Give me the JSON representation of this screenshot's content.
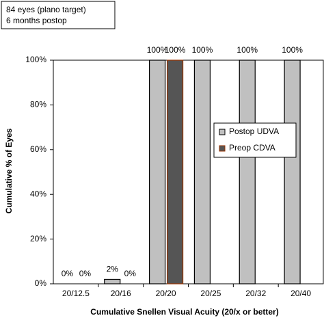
{
  "chart_data": {
    "type": "bar",
    "annotation": [
      "84 eyes (plano target)",
      "6 months postop"
    ],
    "x_label": "Cumulative Snellen Visual Acuity (20/x or better)",
    "y_label": "Cumulative % of Eyes",
    "categories": [
      "20/12.5",
      "20/16",
      "20/20",
      "20/25",
      "20/32",
      "20/40"
    ],
    "series": [
      {
        "name": "Postop UDVA",
        "color": "#c0c0c0",
        "edge_color": "#000000",
        "values": [
          0,
          2,
          100,
          100,
          100,
          100
        ],
        "value_labels": [
          "0%",
          "2%",
          "100%",
          "100%",
          "100%",
          "100%"
        ]
      },
      {
        "name": "Preop CDVA",
        "color": "#555555",
        "edge_color": "#993300",
        "values": [
          0,
          0,
          100,
          null,
          null,
          null
        ],
        "value_labels": [
          "0%",
          "0%",
          "100%",
          null,
          null,
          null
        ]
      }
    ],
    "ylim": [
      0,
      100
    ],
    "yticks": [
      {
        "value": 0,
        "label": "0%"
      },
      {
        "value": 20,
        "label": "20%"
      },
      {
        "value": 40,
        "label": "40%"
      },
      {
        "value": 60,
        "label": "60%"
      },
      {
        "value": 80,
        "label": "80%"
      },
      {
        "value": 100,
        "label": "100%"
      }
    ],
    "grid": false,
    "legend": "right"
  }
}
